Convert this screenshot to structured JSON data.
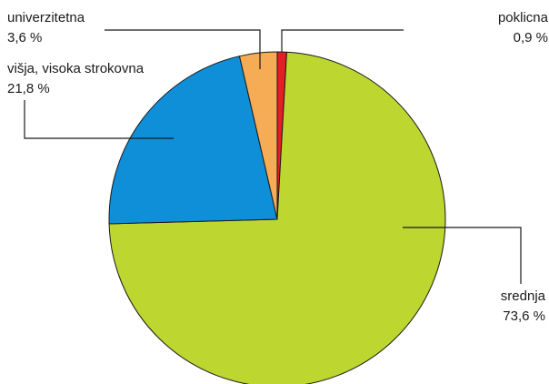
{
  "chart_data": {
    "type": "pie",
    "start_angle_deg": 0,
    "direction": "clockwise",
    "slices": [
      {
        "label": "poklicna",
        "value_text": "0,9 %",
        "value": 0.9,
        "color": "#e31e24"
      },
      {
        "label": "srednja",
        "value_text": "73,6 %",
        "value": 73.6,
        "color": "#bed630"
      },
      {
        "label": "višja, visoka strokovna",
        "value_text": "21,8 %",
        "value": 21.8,
        "color": "#0f8fd8"
      },
      {
        "label": "univerzitetna",
        "value_text": "3,6 %",
        "value": 3.6,
        "color": "#f6ab55"
      }
    ],
    "legend": "none",
    "grid": false
  }
}
